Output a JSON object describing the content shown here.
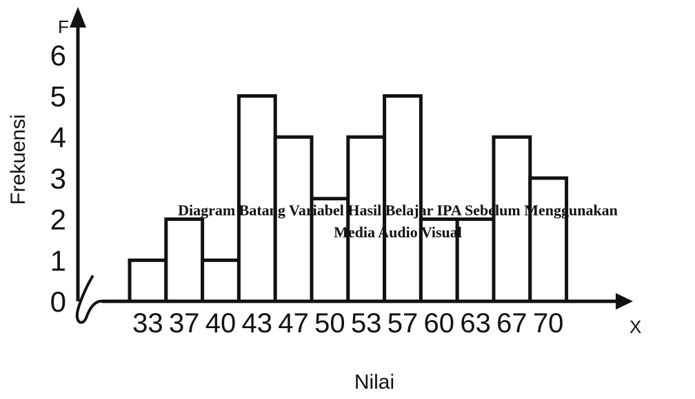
{
  "chart_data": {
    "type": "bar",
    "title_lines": [
      "Diagram Batang Variabel Hasil Belajar IPA Sebelum Menggunakan",
      "Media Audio Visual"
    ],
    "xlabel": "Nilai",
    "ylabel": "Frekuensi",
    "x_axis_symbol": "X",
    "y_axis_symbol": "F",
    "categories": [
      "33",
      "37",
      "40",
      "43",
      "47",
      "50",
      "53",
      "57",
      "60",
      "63",
      "67",
      "70"
    ],
    "values": [
      1,
      2,
      1,
      5,
      4,
      2.5,
      4,
      5,
      2,
      2,
      4,
      3
    ],
    "y_ticks": [
      0,
      1,
      2,
      3,
      4,
      5,
      6
    ],
    "ylim": [
      0,
      6
    ],
    "grid": false,
    "legend": "none",
    "colors": {
      "bar_fill": "#ffffff",
      "bar_stroke": "#111111",
      "axis": "#111111",
      "text": "#111111"
    }
  }
}
